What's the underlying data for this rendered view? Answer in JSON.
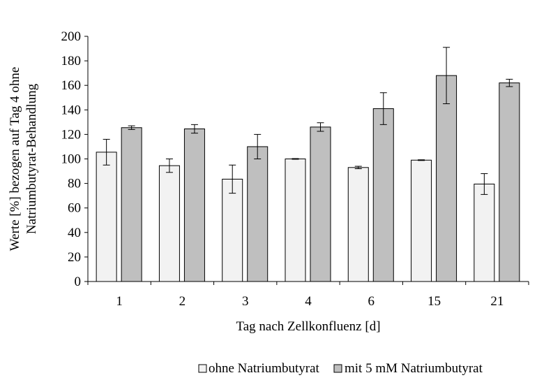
{
  "chart_data": {
    "type": "bar",
    "title": "",
    "xlabel": "Tag nach Zellkonfluenz [d]",
    "ylabel_lines": [
      "Werte [%] bezogen auf Tag 4 ohne",
      "Natriumbutyrat-Behandlung"
    ],
    "ylim": [
      0,
      200
    ],
    "yticks": [
      0,
      20,
      40,
      60,
      80,
      100,
      120,
      140,
      160,
      180,
      200
    ],
    "categories": [
      "1",
      "2",
      "3",
      "4",
      "6",
      "15",
      "21"
    ],
    "grid": false,
    "legend_position": "bottom",
    "series": [
      {
        "name": "ohne Natriumbutyrat",
        "color": "#f2f2f2",
        "values": [
          105.5,
          94.5,
          83.5,
          100,
          93,
          99,
          79.5
        ],
        "errors": [
          10.5,
          5.5,
          11.5,
          0.3,
          1,
          0.3,
          8.5
        ]
      },
      {
        "name": "mit 5 mM Natriumbutyrat",
        "color": "#bfbfbf",
        "values": [
          125.5,
          124.5,
          110,
          126,
          141,
          168,
          162
        ],
        "errors": [
          1.5,
          3.5,
          10,
          3.5,
          13,
          23,
          3
        ]
      }
    ]
  }
}
